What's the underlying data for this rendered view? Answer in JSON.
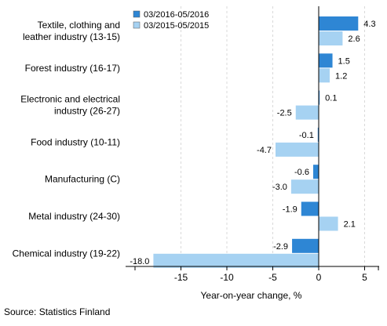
{
  "chart_data": {
    "type": "bar",
    "orientation": "horizontal",
    "categories": [
      [
        "Textile, clothing and",
        "leather industry (13-15)"
      ],
      [
        "Forest industry (16-17)"
      ],
      [
        "Electronic and electrical",
        "industry (26-27)"
      ],
      [
        "Food industry (10-11)"
      ],
      [
        "Manufacturing (C)"
      ],
      [
        "Metal industry (24-30)"
      ],
      [
        "Chemical industry (19-22)"
      ]
    ],
    "series": [
      {
        "name": "03/2016-05/2016",
        "color": "#2e86d4",
        "values": [
          4.3,
          1.5,
          0.1,
          -0.1,
          -0.6,
          -1.9,
          -2.9
        ],
        "labels": [
          "4.3",
          "1.5",
          "0.1",
          "-0.1",
          "-0.6",
          "-1.9",
          "-2.9"
        ]
      },
      {
        "name": "03/2015-05/2015",
        "color": "#a6d2f2",
        "values": [
          2.6,
          1.2,
          -2.5,
          -4.7,
          -3.0,
          2.1,
          -18.0
        ],
        "labels": [
          "2.6",
          "1.2",
          "-2.5",
          "-4.7",
          "-3.0",
          "2.1",
          "-18.0"
        ]
      }
    ],
    "xlim": [
      -20,
      6.5
    ],
    "xticks": [
      -15,
      -10,
      -5,
      0,
      5
    ],
    "xtick_labels": [
      "-15",
      "-10",
      "-5",
      "0",
      "5"
    ],
    "xlabel": "Year-on-year change, %",
    "grid": true,
    "legend_position": "top-center"
  },
  "source": "Source: Statistics Finland"
}
